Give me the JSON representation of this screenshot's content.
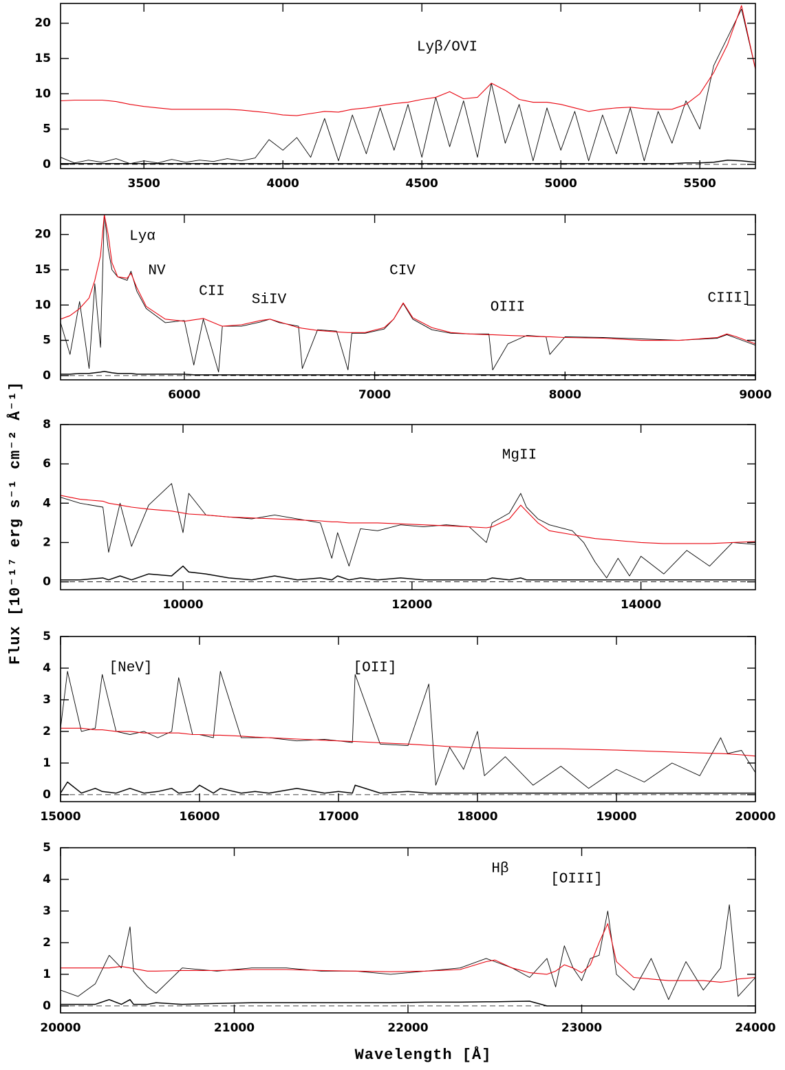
{
  "figure": {
    "xlabel": "Wavelength [Å]",
    "ylabel": "Flux [10⁻¹⁷ erg s⁻¹ cm⁻² Å⁻¹]"
  },
  "chart_data": [
    {
      "type": "line",
      "annotations": [
        "Lyβ/OVI"
      ],
      "xlim": [
        3200,
        5700
      ],
      "xticks": [
        3500,
        4000,
        4500,
        5000,
        5500
      ],
      "ylim": [
        -0.6,
        22.8
      ],
      "yticks": [
        0,
        5,
        10,
        15,
        20
      ],
      "x": [
        3200,
        3250,
        3300,
        3350,
        3400,
        3450,
        3500,
        3550,
        3600,
        3650,
        3700,
        3750,
        3800,
        3850,
        3900,
        3950,
        4000,
        4050,
        4100,
        4150,
        4200,
        4250,
        4300,
        4350,
        4400,
        4450,
        4500,
        4550,
        4600,
        4650,
        4700,
        4750,
        4800,
        4850,
        4900,
        4950,
        5000,
        5050,
        5100,
        5150,
        5200,
        5250,
        5300,
        5350,
        5400,
        5450,
        5500,
        5550,
        5600,
        5650,
        5700
      ],
      "series": [
        {
          "color": "#000000",
          "values": [
            1.0,
            0.2,
            0.6,
            0.3,
            0.8,
            0.1,
            0.5,
            0.2,
            0.7,
            0.3,
            0.6,
            0.4,
            0.8,
            0.5,
            0.9,
            3.5,
            2.0,
            3.8,
            1.0,
            6.5,
            0.5,
            7.0,
            1.5,
            8.0,
            2.0,
            8.5,
            1.0,
            9.5,
            2.5,
            9.0,
            1.0,
            11.5,
            3.0,
            8.5,
            0.5,
            8.0,
            2.0,
            7.5,
            0.5,
            7.0,
            1.5,
            8.0,
            0.5,
            7.5,
            3.0,
            9.0,
            5.0,
            14.0,
            18.0,
            22.0,
            13.5
          ]
        },
        {
          "color": "#e8000b",
          "values": [
            9.0,
            9.1,
            9.1,
            9.1,
            8.9,
            8.5,
            8.2,
            8.0,
            7.8,
            7.8,
            7.8,
            7.8,
            7.8,
            7.7,
            7.5,
            7.3,
            7.0,
            6.9,
            7.2,
            7.5,
            7.4,
            7.8,
            8.0,
            8.3,
            8.6,
            8.8,
            9.2,
            9.5,
            10.3,
            9.3,
            9.5,
            11.5,
            10.5,
            9.2,
            8.8,
            8.8,
            8.5,
            8.0,
            7.5,
            7.8,
            8.0,
            8.1,
            7.9,
            7.8,
            7.8,
            8.5,
            10.0,
            13.0,
            17.0,
            22.5,
            13.5
          ]
        },
        {
          "color": "#000000",
          "values": [
            0.1,
            0.1,
            0.1,
            0.1,
            0.1,
            0.1,
            0.1,
            0.1,
            0.1,
            0.1,
            0.1,
            0.1,
            0.1,
            0.1,
            0.1,
            0.1,
            0.1,
            0.1,
            0.1,
            0.1,
            0.1,
            0.1,
            0.1,
            0.1,
            0.1,
            0.1,
            0.1,
            0.1,
            0.1,
            0.1,
            0.1,
            0.1,
            0.1,
            0.1,
            0.1,
            0.1,
            0.1,
            0.1,
            0.1,
            0.1,
            0.1,
            0.1,
            0.1,
            0.1,
            0.1,
            0.2,
            0.2,
            0.3,
            0.6,
            0.5,
            0.3
          ]
        }
      ]
    },
    {
      "type": "line",
      "annotations": [
        "Lyα",
        "NV",
        "CII",
        "SiIV",
        "CIV",
        "OIII",
        "CIII]"
      ],
      "xlim": [
        5350,
        9000
      ],
      "xticks": [
        6000,
        7000,
        8000,
        9000
      ],
      "ylim": [
        -0.6,
        22.8
      ],
      "yticks": [
        0,
        5,
        10,
        15,
        20
      ],
      "x": [
        5350,
        5400,
        5450,
        5500,
        5530,
        5560,
        5580,
        5600,
        5620,
        5650,
        5700,
        5720,
        5750,
        5800,
        5900,
        6000,
        6050,
        6100,
        6180,
        6200,
        6300,
        6400,
        6450,
        6500,
        6600,
        6620,
        6700,
        6800,
        6860,
        6880,
        6950,
        7050,
        7100,
        7150,
        7200,
        7300,
        7400,
        7500,
        7600,
        7620,
        7700,
        7800,
        7900,
        7920,
        8000,
        8200,
        8400,
        8600,
        8800,
        8850,
        8900,
        9000
      ],
      "series": [
        {
          "color": "#000000",
          "values": [
            7.5,
            3.0,
            10.5,
            1.0,
            13.0,
            4.0,
            23.0,
            18.0,
            15.0,
            14.0,
            13.5,
            14.8,
            12.0,
            9.5,
            7.5,
            7.8,
            1.5,
            8.0,
            0.5,
            7.0,
            7.0,
            7.6,
            8.0,
            7.5,
            7.0,
            1.0,
            6.5,
            6.3,
            0.8,
            6.0,
            6.0,
            6.6,
            8.0,
            10.2,
            8.0,
            6.5,
            6.0,
            5.9,
            5.9,
            0.8,
            4.5,
            5.7,
            5.5,
            3.0,
            5.5,
            5.4,
            5.2,
            5.0,
            5.3,
            5.8,
            5.3,
            4.3
          ]
        },
        {
          "color": "#e8000b",
          "values": [
            8.0,
            8.5,
            9.5,
            11.0,
            13.5,
            17.0,
            22.8,
            20.0,
            16.0,
            14.0,
            13.8,
            14.5,
            12.5,
            9.8,
            8.0,
            7.7,
            7.9,
            8.1,
            7.2,
            7.0,
            7.2,
            7.8,
            8.0,
            7.6,
            6.8,
            6.7,
            6.4,
            6.2,
            6.1,
            6.1,
            6.1,
            6.8,
            8.0,
            10.3,
            8.2,
            6.8,
            6.1,
            5.9,
            5.8,
            5.8,
            5.7,
            5.6,
            5.5,
            5.5,
            5.4,
            5.3,
            5.0,
            5.0,
            5.4,
            5.9,
            5.5,
            4.5
          ]
        },
        {
          "color": "#000000",
          "values": [
            0.2,
            0.2,
            0.3,
            0.3,
            0.4,
            0.5,
            0.6,
            0.5,
            0.4,
            0.3,
            0.3,
            0.3,
            0.2,
            0.2,
            0.2,
            0.2,
            0.1,
            0.1,
            0.1,
            0.1,
            0.1,
            0.1,
            0.1,
            0.1,
            0.1,
            0.1,
            0.1,
            0.1,
            0.1,
            0.1,
            0.1,
            0.1,
            0.1,
            0.1,
            0.1,
            0.1,
            0.1,
            0.1,
            0.1,
            0.1,
            0.1,
            0.1,
            0.1,
            0.1,
            0.1,
            0.1,
            0.1,
            0.1,
            0.1,
            0.1,
            0.1,
            0.1
          ]
        }
      ]
    },
    {
      "type": "line",
      "annotations": [
        "MgII"
      ],
      "xlim": [
        8930,
        15000
      ],
      "xticks": [
        10000,
        12000,
        14000
      ],
      "ylim": [
        -0.4,
        8
      ],
      "yticks": [
        0,
        2,
        4,
        6,
        8
      ],
      "x": [
        8930,
        9100,
        9300,
        9350,
        9450,
        9550,
        9700,
        9900,
        10000,
        10050,
        10200,
        10400,
        10600,
        10800,
        11000,
        11200,
        11300,
        11350,
        11450,
        11550,
        11700,
        11900,
        12100,
        12300,
        12500,
        12650,
        12700,
        12850,
        12950,
        13000,
        13100,
        13200,
        13400,
        13500,
        13600,
        13700,
        13800,
        13900,
        14000,
        14200,
        14400,
        14600,
        14800,
        15000
      ],
      "series": [
        {
          "color": "#000000",
          "values": [
            4.3,
            4.0,
            3.8,
            1.5,
            4.0,
            1.8,
            3.9,
            5.0,
            2.5,
            4.5,
            3.4,
            3.3,
            3.2,
            3.4,
            3.2,
            3.0,
            1.2,
            2.5,
            0.8,
            2.7,
            2.6,
            2.9,
            2.8,
            2.9,
            2.8,
            2.0,
            3.0,
            3.5,
            4.5,
            3.8,
            3.2,
            2.9,
            2.6,
            2.0,
            1.0,
            0.2,
            1.2,
            0.3,
            1.3,
            0.4,
            1.6,
            0.8,
            2.0,
            1.9
          ]
        },
        {
          "color": "#e8000b",
          "values": [
            4.4,
            4.2,
            4.1,
            4.0,
            3.9,
            3.8,
            3.7,
            3.6,
            3.5,
            3.45,
            3.4,
            3.3,
            3.25,
            3.2,
            3.15,
            3.1,
            3.05,
            3.05,
            3.0,
            3.0,
            3.0,
            2.95,
            2.9,
            2.85,
            2.8,
            2.75,
            2.8,
            3.2,
            3.9,
            3.6,
            3.0,
            2.6,
            2.4,
            2.3,
            2.2,
            2.15,
            2.1,
            2.05,
            2.0,
            1.95,
            1.95,
            1.95,
            2.0,
            2.05
          ]
        },
        {
          "color": "#000000",
          "values": [
            0.1,
            0.1,
            0.2,
            0.1,
            0.3,
            0.1,
            0.4,
            0.3,
            0.8,
            0.5,
            0.4,
            0.2,
            0.1,
            0.3,
            0.1,
            0.2,
            0.1,
            0.3,
            0.1,
            0.2,
            0.1,
            0.2,
            0.1,
            0.1,
            0.1,
            0.1,
            0.2,
            0.1,
            0.2,
            0.1,
            0.1,
            0.1,
            0.1,
            0.1,
            0.1,
            0.1,
            0.1,
            0.1,
            0.1,
            0.1,
            0.1,
            0.1,
            0.1,
            0.1
          ]
        }
      ]
    },
    {
      "type": "line",
      "annotations": [
        "[NeV]",
        "[OII]"
      ],
      "xlim": [
        15000,
        20000
      ],
      "xticks": [
        15000,
        16000,
        17000,
        18000,
        19000,
        20000
      ],
      "ylim": [
        -0.22,
        5
      ],
      "yticks": [
        0,
        1,
        2,
        3,
        4,
        5
      ],
      "x": [
        15000,
        15050,
        15150,
        15250,
        15300,
        15400,
        15500,
        15600,
        15700,
        15800,
        15850,
        15950,
        16000,
        16100,
        16150,
        16300,
        16400,
        16500,
        16700,
        16900,
        17000,
        17100,
        17120,
        17300,
        17500,
        17650,
        17700,
        17800,
        17900,
        18000,
        18050,
        18200,
        18400,
        18600,
        18800,
        19000,
        19200,
        19400,
        19600,
        19750,
        19800,
        19900,
        20000
      ],
      "series": [
        {
          "color": "#000000",
          "values": [
            2.1,
            3.9,
            2.0,
            2.1,
            3.8,
            2.0,
            1.9,
            2.0,
            1.8,
            2.0,
            3.7,
            1.9,
            1.9,
            1.8,
            3.9,
            1.8,
            1.8,
            1.8,
            1.7,
            1.75,
            1.7,
            1.65,
            3.8,
            1.6,
            1.55,
            3.5,
            0.3,
            1.5,
            0.8,
            2.0,
            0.6,
            1.2,
            0.3,
            0.9,
            0.2,
            0.8,
            0.4,
            1.0,
            0.6,
            1.8,
            1.3,
            1.4,
            0.7
          ]
        },
        {
          "color": "#e8000b",
          "values": [
            2.1,
            2.1,
            2.1,
            2.05,
            2.05,
            2.0,
            2.0,
            1.95,
            1.95,
            1.95,
            1.95,
            1.9,
            1.9,
            1.88,
            1.88,
            1.85,
            1.82,
            1.8,
            1.76,
            1.72,
            1.7,
            1.68,
            1.68,
            1.64,
            1.6,
            1.56,
            1.55,
            1.52,
            1.5,
            1.48,
            1.48,
            1.47,
            1.46,
            1.45,
            1.43,
            1.41,
            1.38,
            1.35,
            1.32,
            1.3,
            1.29,
            1.26,
            1.22
          ]
        },
        {
          "color": "#000000",
          "values": [
            0.05,
            0.4,
            0.05,
            0.2,
            0.1,
            0.05,
            0.2,
            0.05,
            0.1,
            0.2,
            0.05,
            0.1,
            0.3,
            0.05,
            0.2,
            0.05,
            0.1,
            0.05,
            0.2,
            0.05,
            0.1,
            0.05,
            0.3,
            0.05,
            0.1,
            0.05,
            0.05,
            0.05,
            0.05,
            0.05,
            0.05,
            0.05,
            0.05,
            0.05,
            0.05,
            0.05,
            0.05,
            0.05,
            0.05,
            0.05,
            0.05,
            0.05,
            0.05
          ]
        }
      ]
    },
    {
      "type": "line",
      "annotations": [
        "Hβ",
        "[OIII]"
      ],
      "xlim": [
        20000,
        24000
      ],
      "xticks": [
        20000,
        21000,
        22000,
        23000,
        24000
      ],
      "ylim": [
        -0.22,
        5
      ],
      "yticks": [
        0,
        1,
        2,
        3,
        4,
        5
      ],
      "x": [
        20000,
        20100,
        20200,
        20280,
        20350,
        20400,
        20420,
        20500,
        20550,
        20700,
        20900,
        21100,
        21300,
        21500,
        21700,
        21900,
        22100,
        22300,
        22450,
        22500,
        22600,
        22700,
        22800,
        22850,
        22900,
        22950,
        23000,
        23050,
        23100,
        23150,
        23200,
        23300,
        23400,
        23500,
        23600,
        23700,
        23800,
        23850,
        23900,
        24000
      ],
      "series": [
        {
          "color": "#000000",
          "values": [
            0.5,
            0.3,
            0.7,
            1.6,
            1.2,
            2.5,
            1.1,
            0.6,
            0.4,
            1.2,
            1.1,
            1.2,
            1.2,
            1.1,
            1.1,
            1.0,
            1.1,
            1.2,
            1.5,
            1.4,
            1.2,
            0.9,
            1.5,
            0.6,
            1.9,
            1.2,
            0.8,
            1.5,
            1.6,
            3.0,
            1.0,
            0.5,
            1.5,
            0.2,
            1.4,
            0.5,
            1.2,
            3.2,
            0.3,
            0.9
          ]
        },
        {
          "color": "#e8000b",
          "values": [
            1.2,
            1.2,
            1.2,
            1.2,
            1.25,
            1.2,
            1.18,
            1.1,
            1.1,
            1.12,
            1.12,
            1.15,
            1.15,
            1.12,
            1.1,
            1.08,
            1.1,
            1.15,
            1.4,
            1.45,
            1.2,
            1.05,
            1.0,
            1.1,
            1.3,
            1.2,
            1.05,
            1.3,
            2.0,
            2.6,
            1.4,
            0.9,
            0.85,
            0.8,
            0.8,
            0.8,
            0.75,
            0.78,
            0.85,
            0.9
          ]
        },
        {
          "color": "#000000",
          "values": [
            0.05,
            0.05,
            0.05,
            0.2,
            0.05,
            0.2,
            0.05,
            0.05,
            0.1,
            0.05,
            0.08,
            0.1,
            0.1,
            0.1,
            0.1,
            0.1,
            0.12,
            0.12,
            0.13,
            0.13,
            0.14,
            0.15,
            0.0,
            0.0,
            0.0,
            0.0,
            0.0,
            0.0,
            0.0,
            0.0,
            0.0,
            0.0,
            0.0,
            0.0,
            0.0,
            0.0,
            0.0,
            0.0,
            0.0,
            0.0
          ]
        }
      ]
    }
  ]
}
